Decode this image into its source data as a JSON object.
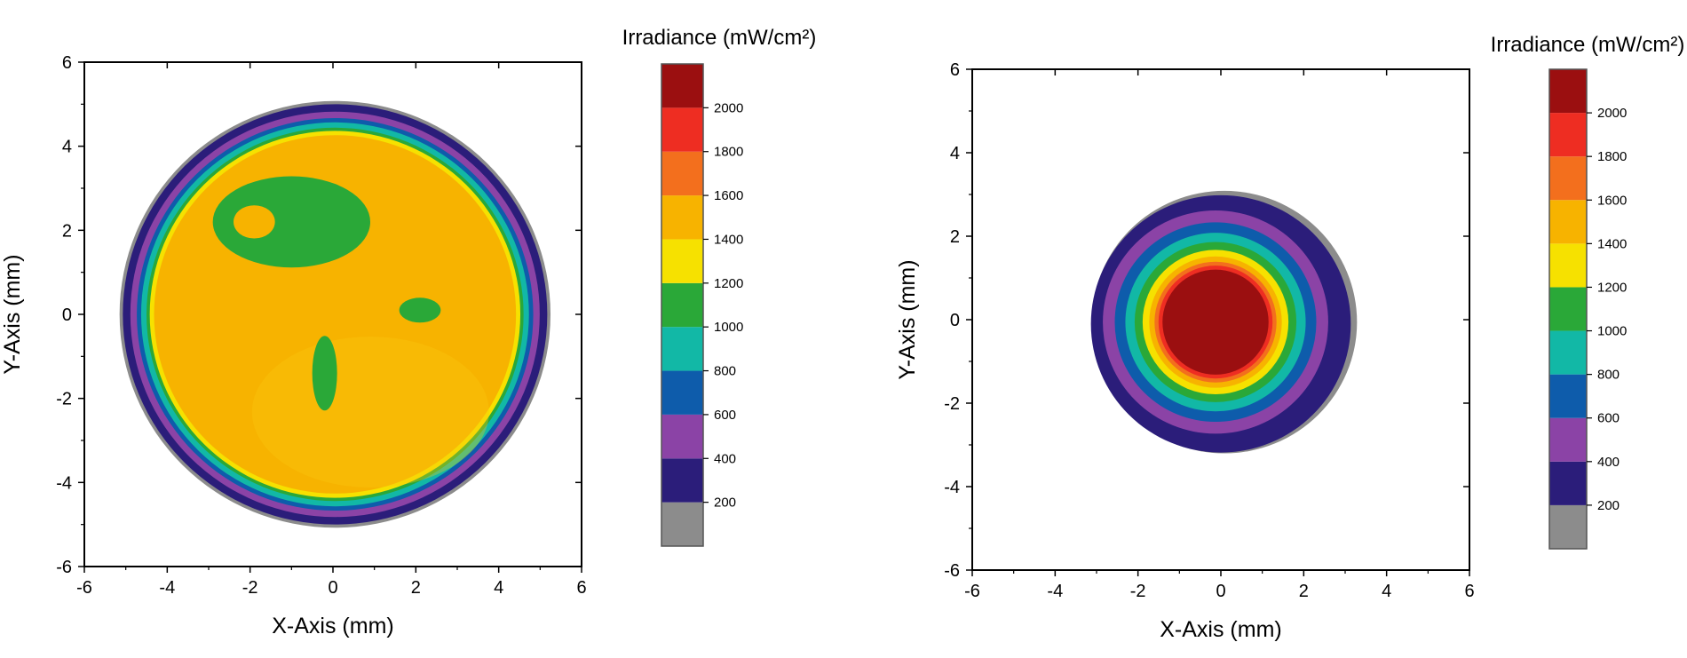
{
  "chart_data": [
    {
      "type": "heatmap",
      "title": "",
      "xlabel": "X-Axis (mm)",
      "ylabel": "Y-Axis (mm)",
      "xlim": [
        -6,
        6
      ],
      "ylim": [
        -6,
        6
      ],
      "xticks": [
        -6,
        -4,
        -2,
        0,
        2,
        4,
        6
      ],
      "yticks": [
        -6,
        -4,
        -2,
        0,
        2,
        4,
        6
      ],
      "xtick_labels": [
        "-6",
        "-4",
        "-2",
        "0",
        "2",
        "4",
        "6"
      ],
      "ytick_labels": [
        "-6",
        "-4",
        "-2",
        "0",
        "2",
        "4",
        "6"
      ],
      "grid": false,
      "beam_center": [
        0.05,
        0.0
      ],
      "beam_radius": 5.2,
      "dominant_level_min": 1400,
      "features": [
        {
          "label": "1000-1200",
          "center": [
            -1.0,
            2.2
          ],
          "rx": 1.9,
          "ry": 1.1
        },
        {
          "label": "1400-1600",
          "center": [
            -1.9,
            2.2
          ],
          "rx": 0.5,
          "ry": 0.4
        },
        {
          "label": "1000-1200",
          "center": [
            2.1,
            0.1
          ],
          "rx": 0.5,
          "ry": 0.3
        },
        {
          "label": "1000-1200",
          "center": [
            -0.2,
            -1.4
          ],
          "rx": 0.3,
          "ry": 0.9
        }
      ],
      "colorbar": {
        "title": "Irradiance (mW/cm²)",
        "levels": [
          0,
          200,
          400,
          600,
          800,
          1000,
          1200,
          1400,
          1600,
          1800,
          2000,
          2200
        ],
        "tick_labels": [
          "200",
          "400",
          "600",
          "800",
          "1000",
          "1200",
          "1400",
          "1600",
          "1800",
          "2000"
        ],
        "colors": [
          "#8c8c8c",
          "#2b1d7a",
          "#8b43a6",
          "#0e5cab",
          "#12b8a6",
          "#2aa838",
          "#f6e100",
          "#f7b300",
          "#f36f1d",
          "#ee2d22",
          "#9b0f10"
        ]
      }
    },
    {
      "type": "heatmap",
      "title": "",
      "xlabel": "X-Axis (mm)",
      "ylabel": "Y-Axis (mm)",
      "xlim": [
        -6,
        6
      ],
      "ylim": [
        -6,
        6
      ],
      "xticks": [
        -6,
        -4,
        -2,
        0,
        2,
        4,
        6
      ],
      "yticks": [
        -6,
        -4,
        -2,
        0,
        2,
        4,
        6
      ],
      "xtick_labels": [
        "-6",
        "-4",
        "-2",
        "0",
        "2",
        "4",
        "6"
      ],
      "ytick_labels": [
        "-6",
        "-4",
        "-2",
        "0",
        "2",
        "4",
        "6"
      ],
      "grid": false,
      "beam_center": [
        0.0,
        -0.1
      ],
      "beam_radius": 3.2,
      "dominant_level_min": 2000,
      "features": [],
      "colorbar": {
        "title": "Irradiance (mW/cm²)",
        "levels": [
          0,
          200,
          400,
          600,
          800,
          1000,
          1200,
          1400,
          1600,
          1800,
          2000,
          2200
        ],
        "tick_labels": [
          "200",
          "400",
          "600",
          "800",
          "1000",
          "1200",
          "1400",
          "1600",
          "1800",
          "2000"
        ],
        "colors": [
          "#8c8c8c",
          "#2b1d7a",
          "#8b43a6",
          "#0e5cab",
          "#12b8a6",
          "#2aa838",
          "#f6e100",
          "#f7b300",
          "#f36f1d",
          "#ee2d22",
          "#9b0f10"
        ]
      }
    }
  ]
}
